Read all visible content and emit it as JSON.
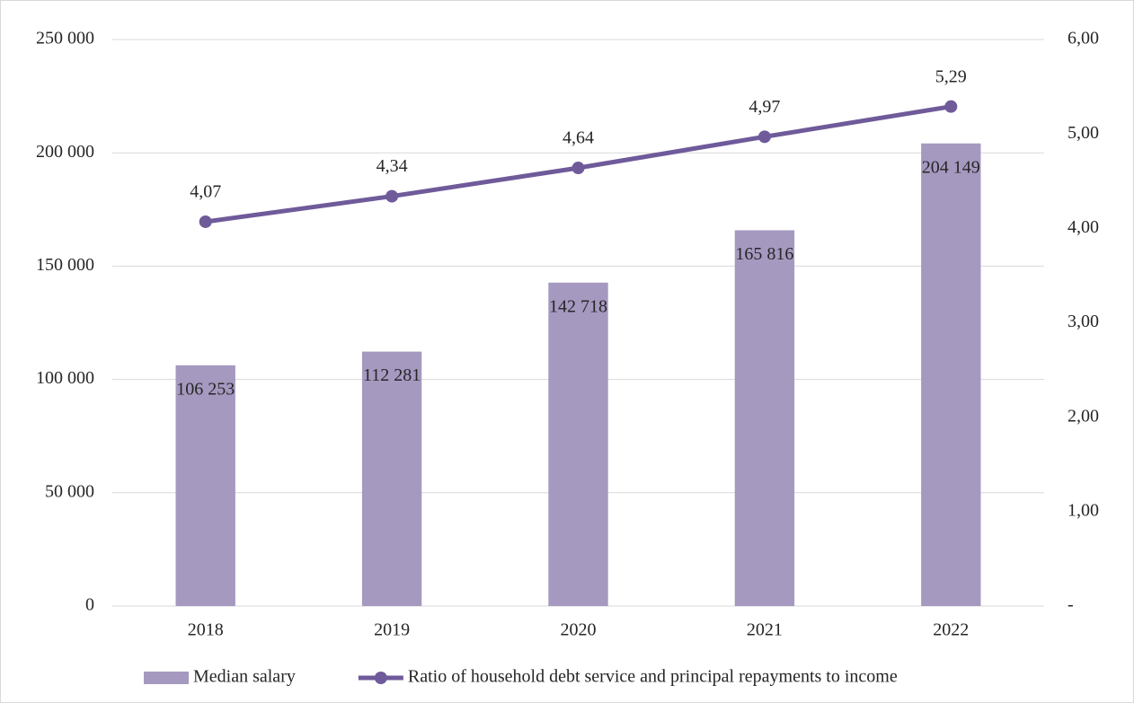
{
  "chart_data": {
    "type": "bar",
    "categories": [
      "2018",
      "2019",
      "2020",
      "2021",
      "2022"
    ],
    "series": [
      {
        "name": "Median salary",
        "type": "bar",
        "color": "#a699c0",
        "values": [
          106253,
          112281,
          142718,
          165816,
          204149
        ],
        "value_labels": [
          "106 253",
          "112 281",
          "142 718",
          "165 816",
          "204 149"
        ]
      },
      {
        "name": "Ratio of household debt service and principal repayments to income",
        "type": "line",
        "axis": "y2",
        "color": "#6f5a9a",
        "values": [
          4.07,
          4.34,
          4.64,
          4.97,
          5.29
        ],
        "value_labels": [
          "4,07",
          "4,34",
          "4,64",
          "4,97",
          "5,29"
        ]
      }
    ],
    "ylim": [
      0,
      250000
    ],
    "yticks": [
      0,
      {
        "value": 50000,
        "label": "50 000"
      },
      {
        "value": 100000,
        "label": "100 000"
      },
      {
        "value": 150000,
        "label": "150 000"
      },
      {
        "value": 200000,
        "label": "200 000"
      },
      {
        "value": 250000,
        "label": "250 000"
      }
    ],
    "y2lim": [
      0,
      6
    ],
    "y2ticks": [
      {
        "value": 0,
        "label": "-"
      },
      {
        "value": 1,
        "label": "1,00"
      },
      {
        "value": 2,
        "label": "2,00"
      },
      {
        "value": 3,
        "label": "3,00"
      },
      {
        "value": 4,
        "label": "4,00"
      },
      {
        "value": 5,
        "label": "5,00"
      },
      {
        "value": 6,
        "label": "6,00"
      }
    ],
    "grid": true,
    "legend": "bottom"
  }
}
